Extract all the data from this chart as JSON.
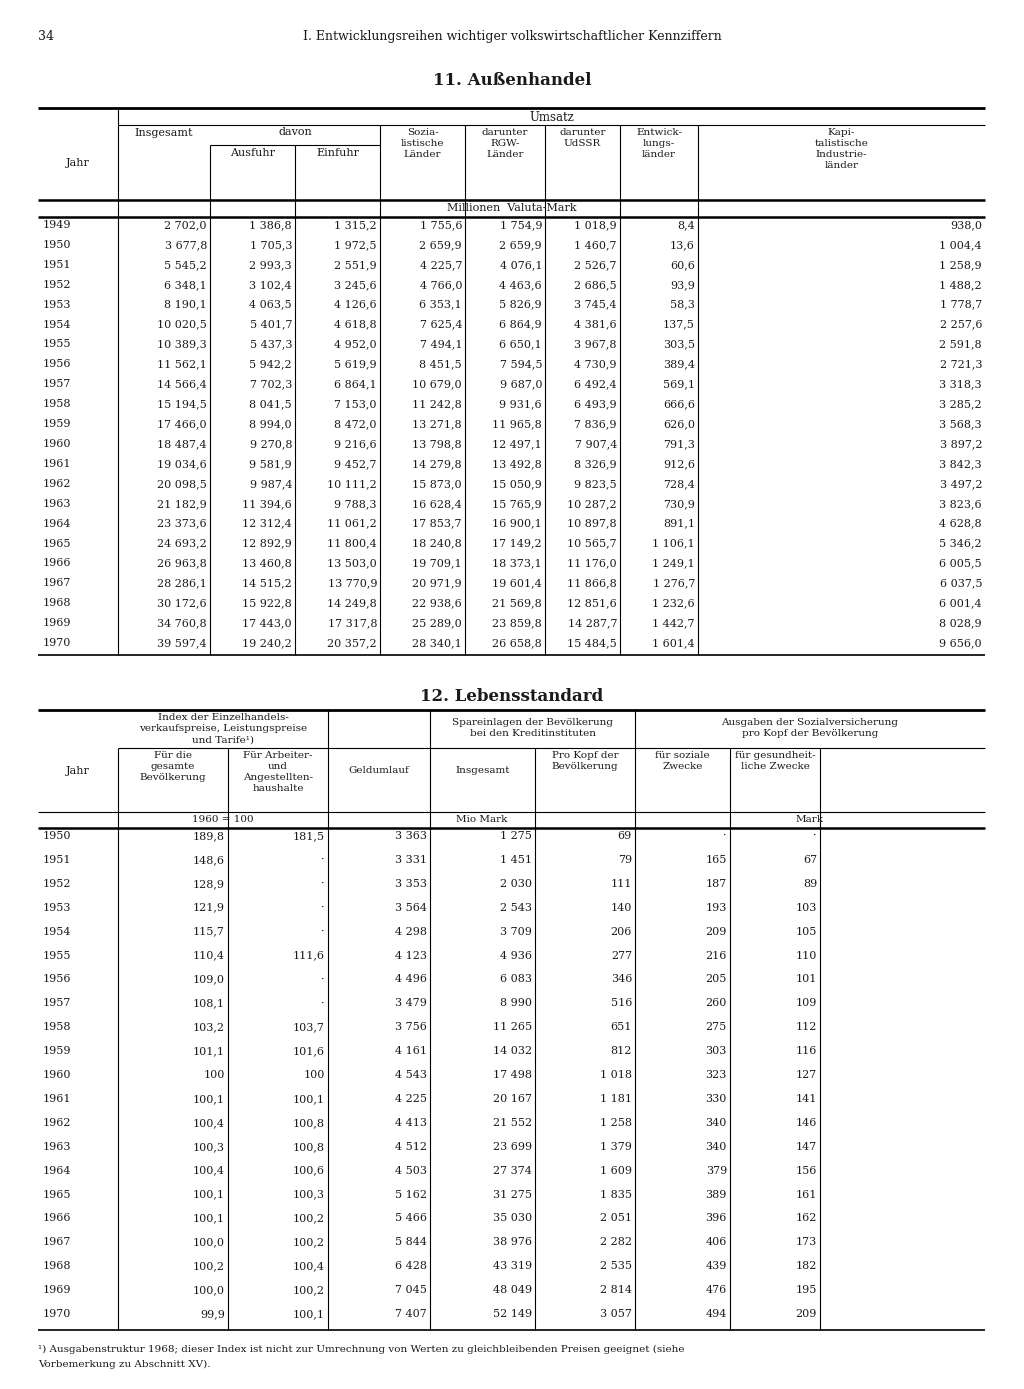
{
  "page_number": "34",
  "page_header": "I. Entwicklungsreihen wichtiger volkswirtschaftlicher Kennziffern",
  "table1_title": "11. Außenhandel",
  "table2_title": "12. Lebensstandard",
  "footnote_super": "1) Ausgabenstruktur 1968; dieser Index ist nicht zur Umrechnung von Werten zu gleichbleibenden Preisen geeignet (siehe",
  "footnote_line2": "Vorbemerkung zu Abschnitt XV).",
  "table1_unit": "Millionen Valuta-Mark",
  "table1_data": [
    [
      "1949",
      "2 702,0",
      "1 386,8",
      "1 315,2",
      "1 755,6",
      "1 754,9",
      "1 018,9",
      "8,4",
      "938,0"
    ],
    [
      "1950",
      "3 677,8",
      "1 705,3",
      "1 972,5",
      "2 659,9",
      "2 659,9",
      "1 460,7",
      "13,6",
      "1 004,4"
    ],
    [
      "1951",
      "5 545,2",
      "2 993,3",
      "2 551,9",
      "4 225,7",
      "4 076,1",
      "2 526,7",
      "60,6",
      "1 258,9"
    ],
    [
      "1952",
      "6 348,1",
      "3 102,4",
      "3 245,6",
      "4 766,0",
      "4 463,6",
      "2 686,5",
      "93,9",
      "1 488,2"
    ],
    [
      "1953",
      "8 190,1",
      "4 063,5",
      "4 126,6",
      "6 353,1",
      "5 826,9",
      "3 745,4",
      "58,3",
      "1 778,7"
    ],
    [
      "1954",
      "10 020,5",
      "5 401,7",
      "4 618,8",
      "7 625,4",
      "6 864,9",
      "4 381,6",
      "137,5",
      "2 257,6"
    ],
    [
      "1955",
      "10 389,3",
      "5 437,3",
      "4 952,0",
      "7 494,1",
      "6 650,1",
      "3 967,8",
      "303,5",
      "2 591,8"
    ],
    [
      "1956",
      "11 562,1",
      "5 942,2",
      "5 619,9",
      "8 451,5",
      "7 594,5",
      "4 730,9",
      "389,4",
      "2 721,3"
    ],
    [
      "1957",
      "14 566,4",
      "7 702,3",
      "6 864,1",
      "10 679,0",
      "9 687,0",
      "6 492,4",
      "569,1",
      "3 318,3"
    ],
    [
      "1958",
      "15 194,5",
      "8 041,5",
      "7 153,0",
      "11 242,8",
      "9 931,6",
      "6 493,9",
      "666,6",
      "3 285,2"
    ],
    [
      "1959",
      "17 466,0",
      "8 994,0",
      "8 472,0",
      "13 271,8",
      "11 965,8",
      "7 836,9",
      "626,0",
      "3 568,3"
    ],
    [
      "1960",
      "18 487,4",
      "9 270,8",
      "9 216,6",
      "13 798,8",
      "12 497,1",
      "7 907,4",
      "791,3",
      "3 897,2"
    ],
    [
      "1961",
      "19 034,6",
      "9 581,9",
      "9 452,7",
      "14 279,8",
      "13 492,8",
      "8 326,9",
      "912,6",
      "3 842,3"
    ],
    [
      "1962",
      "20 098,5",
      "9 987,4",
      "10 111,2",
      "15 873,0",
      "15 050,9",
      "9 823,5",
      "728,4",
      "3 497,2"
    ],
    [
      "1963",
      "21 182,9",
      "11 394,6",
      "9 788,3",
      "16 628,4",
      "15 765,9",
      "10 287,2",
      "730,9",
      "3 823,6"
    ],
    [
      "1964",
      "23 373,6",
      "12 312,4",
      "11 061,2",
      "17 853,7",
      "16 900,1",
      "10 897,8",
      "891,1",
      "4 628,8"
    ],
    [
      "1965",
      "24 693,2",
      "12 892,9",
      "11 800,4",
      "18 240,8",
      "17 149,2",
      "10 565,7",
      "1 106,1",
      "5 346,2"
    ],
    [
      "1966",
      "26 963,8",
      "13 460,8",
      "13 503,0",
      "19 709,1",
      "18 373,1",
      "11 176,0",
      "1 249,1",
      "6 005,5"
    ],
    [
      "1967",
      "28 286,1",
      "14 515,2",
      "13 770,9",
      "20 971,9",
      "19 601,4",
      "11 866,8",
      "1 276,7",
      "6 037,5"
    ],
    [
      "1968",
      "30 172,6",
      "15 922,8",
      "14 249,8",
      "22 938,6",
      "21 569,8",
      "12 851,6",
      "1 232,6",
      "6 001,4"
    ],
    [
      "1969",
      "34 760,8",
      "17 443,0",
      "17 317,8",
      "25 289,0",
      "23 859,8",
      "14 287,7",
      "1 442,7",
      "8 028,9"
    ],
    [
      "1970",
      "39 597,4",
      "19 240,2",
      "20 357,2",
      "28 340,1",
      "26 658,8",
      "15 484,5",
      "1 601,4",
      "9 656,0"
    ]
  ],
  "table2_data": [
    [
      "1950",
      "189,8",
      "181,5",
      "3 363",
      "1 275",
      "69",
      "·",
      "·"
    ],
    [
      "1951",
      "148,6",
      "·",
      "3 331",
      "1 451",
      "79",
      "165",
      "67"
    ],
    [
      "1952",
      "128,9",
      "·",
      "3 353",
      "2 030",
      "111",
      "187",
      "89"
    ],
    [
      "1953",
      "121,9",
      "·",
      "3 564",
      "2 543",
      "140",
      "193",
      "103"
    ],
    [
      "1954",
      "115,7",
      "·",
      "4 298",
      "3 709",
      "206",
      "209",
      "105"
    ],
    [
      "1955",
      "110,4",
      "111,6",
      "4 123",
      "4 936",
      "277",
      "216",
      "110"
    ],
    [
      "1956",
      "109,0",
      "·",
      "4 496",
      "6 083",
      "346",
      "205",
      "101"
    ],
    [
      "1957",
      "108,1",
      "·",
      "3 479",
      "8 990",
      "516",
      "260",
      "109"
    ],
    [
      "1958",
      "103,2",
      "103,7",
      "3 756",
      "11 265",
      "651",
      "275",
      "112"
    ],
    [
      "1959",
      "101,1",
      "101,6",
      "4 161",
      "14 032",
      "812",
      "303",
      "116"
    ],
    [
      "1960",
      "100",
      "100",
      "4 543",
      "17 498",
      "1 018",
      "323",
      "127"
    ],
    [
      "1961",
      "100,1",
      "100,1",
      "4 225",
      "20 167",
      "1 181",
      "330",
      "141"
    ],
    [
      "1962",
      "100,4",
      "100,8",
      "4 413",
      "21 552",
      "1 258",
      "340",
      "146"
    ],
    [
      "1963",
      "100,3",
      "100,8",
      "4 512",
      "23 699",
      "1 379",
      "340",
      "147"
    ],
    [
      "1964",
      "100,4",
      "100,6",
      "4 503",
      "27 374",
      "1 609",
      "379",
      "156"
    ],
    [
      "1965",
      "100,1",
      "100,3",
      "5 162",
      "31 275",
      "1 835",
      "389",
      "161"
    ],
    [
      "1966",
      "100,1",
      "100,2",
      "5 466",
      "35 030",
      "2 051",
      "396",
      "162"
    ],
    [
      "1967",
      "100,0",
      "100,2",
      "5 844",
      "38 976",
      "2 282",
      "406",
      "173"
    ],
    [
      "1968",
      "100,2",
      "100,4",
      "6 428",
      "43 319",
      "2 535",
      "439",
      "182"
    ],
    [
      "1969",
      "100,0",
      "100,2",
      "7 045",
      "48 049",
      "2 814",
      "476",
      "195"
    ],
    [
      "1970",
      "99,9",
      "100,1",
      "7 407",
      "52 149",
      "3 057",
      "494",
      "209"
    ]
  ],
  "bg_color": "#ffffff",
  "text_color": "#1a1a1a"
}
